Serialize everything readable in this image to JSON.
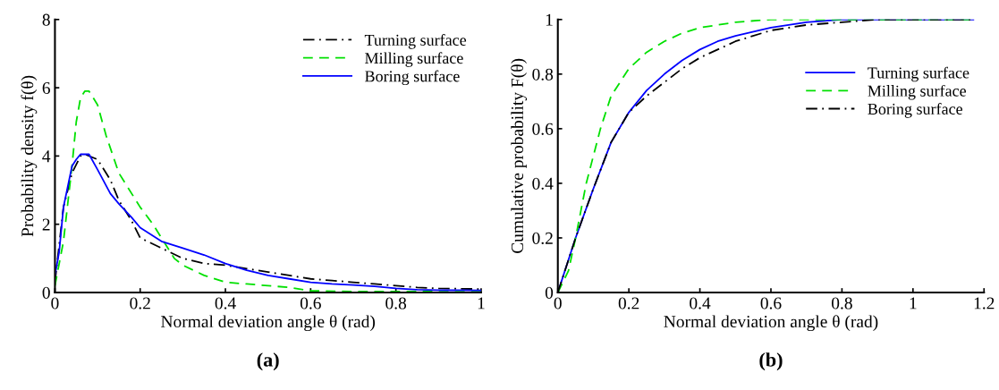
{
  "chart_data": [
    {
      "type": "line",
      "xlabel": "Normal deviation angle θ (rad)",
      "ylabel": "Probability density f(θ)",
      "xlim": [
        0,
        1
      ],
      "ylim": [
        0,
        8
      ],
      "xticks": [
        0,
        0.2,
        0.4,
        0.6,
        0.8,
        1
      ],
      "yticks": [
        0,
        2,
        4,
        6,
        8
      ],
      "legend": "top right",
      "annotations": [
        "(a)"
      ],
      "series": [
        {
          "name": "Turning surface",
          "color": "#000000",
          "line_style": "dashdot",
          "x": [
            0,
            0.02,
            0.04,
            0.06,
            0.07,
            0.1,
            0.13,
            0.15,
            0.18,
            0.2,
            0.25,
            0.3,
            0.35,
            0.4,
            0.45,
            0.5,
            0.55,
            0.6,
            0.65,
            0.7,
            0.75,
            0.8,
            0.85,
            0.9,
            1.0
          ],
          "values": [
            0.3,
            2.5,
            3.5,
            4.0,
            4.05,
            3.9,
            3.3,
            2.7,
            2.1,
            1.6,
            1.3,
            1.0,
            0.85,
            0.8,
            0.7,
            0.6,
            0.5,
            0.4,
            0.35,
            0.3,
            0.25,
            0.2,
            0.15,
            0.12,
            0.1
          ]
        },
        {
          "name": "Milling surface",
          "color": "#00e000",
          "line_style": "dashed",
          "x": [
            0,
            0.02,
            0.04,
            0.05,
            0.06,
            0.07,
            0.08,
            0.1,
            0.12,
            0.15,
            0.2,
            0.23,
            0.25,
            0.28,
            0.3,
            0.35,
            0.4,
            0.45,
            0.5,
            0.55,
            0.6,
            0.7,
            0.8,
            1.0
          ],
          "values": [
            0.2,
            1.5,
            3.7,
            5.0,
            5.7,
            5.9,
            5.9,
            5.5,
            4.6,
            3.5,
            2.5,
            2.0,
            1.6,
            1.0,
            0.8,
            0.5,
            0.3,
            0.25,
            0.2,
            0.15,
            0.05,
            0.03,
            0.03,
            0.02
          ]
        },
        {
          "name": "Boring surface",
          "color": "#0000ff",
          "line_style": "solid",
          "x": [
            0,
            0.01,
            0.02,
            0.03,
            0.04,
            0.05,
            0.06,
            0.08,
            0.1,
            0.13,
            0.15,
            0.18,
            0.2,
            0.25,
            0.3,
            0.35,
            0.4,
            0.45,
            0.5,
            0.55,
            0.6,
            0.65,
            0.7,
            0.75,
            0.8,
            0.85,
            0.9,
            1.0
          ],
          "values": [
            0.5,
            1.2,
            2.5,
            3.1,
            3.7,
            3.9,
            4.05,
            4.05,
            3.6,
            2.9,
            2.6,
            2.2,
            1.9,
            1.5,
            1.3,
            1.1,
            0.85,
            0.65,
            0.5,
            0.4,
            0.3,
            0.25,
            0.22,
            0.18,
            0.12,
            0.08,
            0.07,
            0.06
          ]
        }
      ]
    },
    {
      "type": "line",
      "xlabel": "Normal deviation angle θ (rad)",
      "ylabel": "Cumulative probability F(θ)",
      "xlim": [
        0,
        1.2
      ],
      "ylim": [
        0,
        1
      ],
      "xticks": [
        0,
        0.2,
        0.4,
        0.6,
        0.8,
        1,
        1.2
      ],
      "yticks": [
        0,
        0.2,
        0.4,
        0.6,
        0.8,
        1
      ],
      "legend": "right",
      "annotations": [
        "(b)"
      ],
      "series": [
        {
          "name": "Turning surface",
          "color": "#0000ff",
          "line_style": "solid",
          "x": [
            0,
            0.05,
            0.1,
            0.15,
            0.2,
            0.25,
            0.3,
            0.35,
            0.4,
            0.45,
            0.5,
            0.6,
            0.7,
            0.8,
            1.17
          ],
          "values": [
            0,
            0.2,
            0.38,
            0.55,
            0.66,
            0.74,
            0.8,
            0.85,
            0.89,
            0.92,
            0.94,
            0.97,
            0.99,
            1.0,
            1.0
          ]
        },
        {
          "name": "Milling surface",
          "color": "#00e000",
          "line_style": "dashed",
          "x": [
            0,
            0.03,
            0.05,
            0.08,
            0.1,
            0.12,
            0.15,
            0.2,
            0.25,
            0.3,
            0.35,
            0.4,
            0.5,
            0.6,
            1.17
          ],
          "values": [
            0,
            0.08,
            0.2,
            0.4,
            0.5,
            0.6,
            0.72,
            0.82,
            0.88,
            0.92,
            0.95,
            0.97,
            0.99,
            1.0,
            1.0
          ]
        },
        {
          "name": "Boring surface",
          "color": "#000000",
          "line_style": "dashdot",
          "x": [
            0,
            0.05,
            0.1,
            0.15,
            0.2,
            0.25,
            0.3,
            0.35,
            0.4,
            0.45,
            0.5,
            0.6,
            0.7,
            0.8,
            0.9,
            1.17
          ],
          "values": [
            0,
            0.2,
            0.38,
            0.55,
            0.66,
            0.72,
            0.77,
            0.82,
            0.86,
            0.89,
            0.92,
            0.96,
            0.98,
            0.99,
            1.0,
            1.0
          ]
        }
      ]
    }
  ]
}
